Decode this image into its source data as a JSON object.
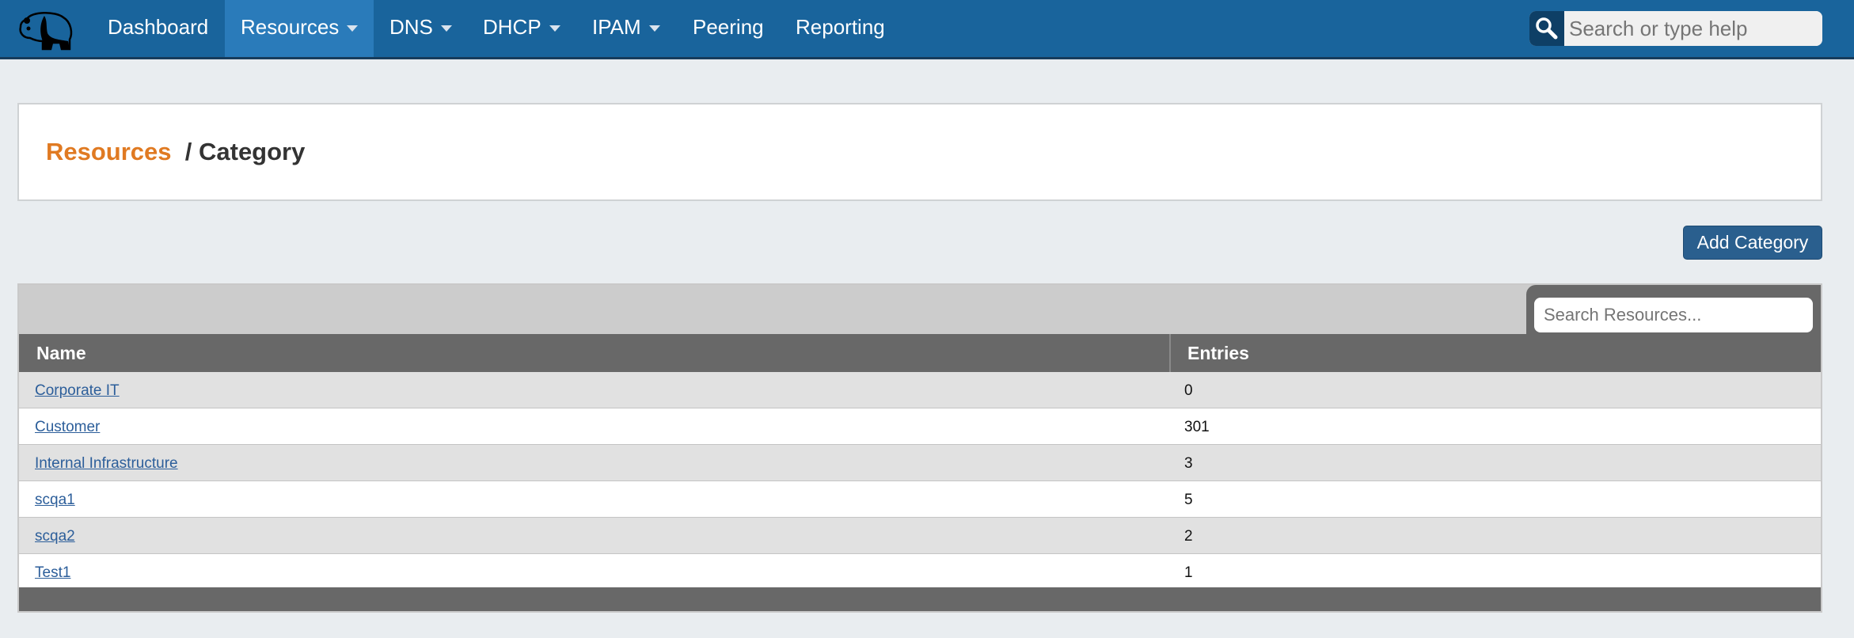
{
  "nav": {
    "items": [
      {
        "label": "Dashboard",
        "dropdown": false
      },
      {
        "label": "Resources",
        "dropdown": true,
        "active": true
      },
      {
        "label": "DNS",
        "dropdown": true
      },
      {
        "label": "DHCP",
        "dropdown": true
      },
      {
        "label": "IPAM",
        "dropdown": true
      },
      {
        "label": "Peering",
        "dropdown": false
      },
      {
        "label": "Reporting",
        "dropdown": false
      }
    ],
    "search_placeholder": "Search or type help",
    "logo_icon": "panda-icon"
  },
  "breadcrumb": {
    "root": "Resources",
    "current": "/ Category"
  },
  "add_button": "Add Category",
  "table": {
    "search_placeholder": "Search Resources...",
    "columns": [
      "Name",
      "Entries"
    ],
    "rows": [
      {
        "name": "Corporate IT",
        "entries": "0"
      },
      {
        "name": "Customer",
        "entries": "301"
      },
      {
        "name": "Internal Infrastructure",
        "entries": "3"
      },
      {
        "name": "scqa1",
        "entries": "5"
      },
      {
        "name": "scqa2",
        "entries": "2"
      },
      {
        "name": "Test1",
        "entries": "1"
      }
    ]
  },
  "colors": {
    "nav": "#19649c",
    "nav_active": "#2a7bba",
    "accent": "#e07a22",
    "button": "#2a5f8e",
    "link": "#2c5e9a"
  }
}
